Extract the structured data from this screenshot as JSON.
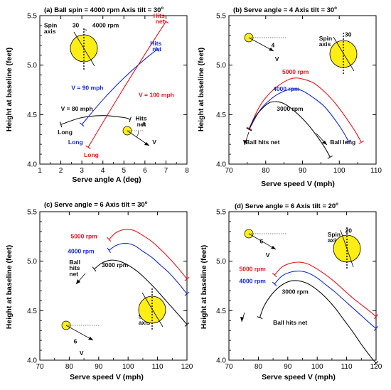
{
  "colors": {
    "red": "#e8141e",
    "blue": "#1428d2",
    "black": "#111111",
    "ball": "#ffee14"
  },
  "chart_data": [
    {
      "type": "line",
      "title": "(a) Ball spin = 4000 rpm   Axis tilt = 30",
      "title_deg": "o",
      "xlabel": "Serve angle A (deg)",
      "ylabel": "Height at baseline (feet)",
      "xlim": [
        1,
        8
      ],
      "ylim": [
        4.0,
        5.5
      ],
      "xticks": [
        "1",
        "2",
        "3",
        "4",
        "5",
        "6",
        "7",
        "8"
      ],
      "yticks": [
        "4.0",
        "4.5",
        "5.0",
        "5.5"
      ],
      "series": [
        {
          "name": "V = 80 mph",
          "color": "black",
          "x": [
            2.0,
            3.0,
            4.0,
            5.0,
            5.3
          ],
          "y": [
            4.4,
            4.47,
            4.49,
            4.47,
            4.45
          ]
        },
        {
          "name": "V = 90 mph",
          "color": "blue",
          "x": [
            3.0,
            4.0,
            5.0,
            6.0,
            6.6
          ],
          "y": [
            4.4,
            4.65,
            4.87,
            5.06,
            5.16
          ]
        },
        {
          "name": "V = 100 mph",
          "color": "red",
          "x": [
            3.3,
            4.0,
            5.0,
            6.0,
            7.0
          ],
          "y": [
            4.17,
            4.42,
            4.77,
            5.11,
            5.44
          ]
        }
      ],
      "annotations": [
        {
          "text": "V = 80 mph",
          "color": "black",
          "at": [
            2.0,
            4.54
          ]
        },
        {
          "text": "Long",
          "color": "black",
          "at": [
            1.85,
            4.3
          ]
        },
        {
          "text": "Hits",
          "color": "black",
          "at": [
            5.55,
            4.44
          ]
        },
        {
          "text": "net",
          "color": "black",
          "at": [
            5.62,
            4.38
          ]
        },
        {
          "text": "V = 90 mph",
          "color": "blue",
          "at": [
            2.5,
            4.75
          ]
        },
        {
          "text": "Long",
          "color": "blue",
          "at": [
            2.35,
            4.2
          ]
        },
        {
          "text": "Hits",
          "color": "blue",
          "at": [
            6.25,
            5.2
          ]
        },
        {
          "text": "net",
          "color": "blue",
          "at": [
            6.35,
            5.14
          ]
        },
        {
          "text": "V = 100 mph",
          "color": "red",
          "at": [
            5.7,
            4.68
          ]
        },
        {
          "text": "Long",
          "color": "red",
          "at": [
            3.1,
            4.07
          ]
        },
        {
          "text": "Hits",
          "color": "red",
          "at": [
            6.4,
            5.48
          ]
        },
        {
          "text": "net",
          "color": "red",
          "at": [
            6.5,
            5.42
          ]
        },
        {
          "text": "Spin",
          "color": "black",
          "at": [
            1.2,
            5.38
          ]
        },
        {
          "text": "axis",
          "color": "black",
          "at": [
            1.2,
            5.32
          ]
        },
        {
          "text": "30",
          "color": "black",
          "at": [
            2.55,
            5.38
          ]
        },
        {
          "text": "4000 rpm",
          "color": "black",
          "at": [
            3.5,
            5.38
          ]
        },
        {
          "text": "A",
          "color": "black",
          "at": [
            5.85,
            4.38
          ]
        },
        {
          "text": "V",
          "color": "black",
          "at": [
            6.35,
            4.2
          ]
        }
      ]
    },
    {
      "type": "line",
      "title": "(b)  Serve angle = 4   Axis tilt = 30",
      "title_deg": "o",
      "xlabel": "Serve speed V (mph)",
      "ylabel": "Height at baseline (feet)",
      "xlim": [
        70,
        110
      ],
      "ylim": [
        4.0,
        5.5
      ],
      "xticks": [
        "70",
        "80",
        "90",
        "100",
        "110"
      ],
      "yticks": [
        "4.0",
        "4.5",
        "5.0",
        "5.5"
      ],
      "series": [
        {
          "name": "5000 rpm",
          "color": "red",
          "x": [
            75.5,
            78,
            80,
            83,
            86,
            88,
            90,
            93,
            96,
            99,
            102,
            104.5,
            106
          ],
          "y": [
            4.36,
            4.56,
            4.67,
            4.78,
            4.85,
            4.87,
            4.86,
            4.82,
            4.73,
            4.61,
            4.46,
            4.32,
            4.22
          ]
        },
        {
          "name": "4000 rpm",
          "color": "blue",
          "x": [
            75.5,
            78,
            80,
            83,
            86,
            88,
            90,
            93,
            96,
            99,
            101,
            102.5
          ],
          "y": [
            4.35,
            4.52,
            4.61,
            4.7,
            4.75,
            4.76,
            4.74,
            4.67,
            4.58,
            4.44,
            4.33,
            4.23
          ]
        },
        {
          "name": "3000 rpm",
          "color": "black",
          "x": [
            75.5,
            77,
            79,
            81,
            83,
            85,
            87,
            90,
            93,
            96,
            97.5
          ],
          "y": [
            4.35,
            4.47,
            4.56,
            4.62,
            4.63,
            4.61,
            4.56,
            4.46,
            4.33,
            4.17,
            4.07
          ]
        }
      ],
      "annotations": [
        {
          "text": "5000 rpm",
          "color": "red",
          "at": [
            84.5,
            4.91
          ]
        },
        {
          "text": "4000 rpm",
          "color": "blue",
          "at": [
            82,
            4.74
          ]
        },
        {
          "text": "3000 rpm",
          "color": "black",
          "at": [
            83,
            4.54
          ]
        },
        {
          "text": "Ball hits net",
          "color": "black",
          "at": [
            74.5,
            4.2
          ]
        },
        {
          "text": "Ball long",
          "color": "black",
          "at": [
            97.5,
            4.2
          ]
        },
        {
          "text": "Spin",
          "color": "black",
          "at": [
            94.5,
            5.25
          ]
        },
        {
          "text": "axis",
          "color": "black",
          "at": [
            94.5,
            5.19
          ]
        },
        {
          "text": "30",
          "color": "black",
          "at": [
            101.5,
            5.29
          ]
        },
        {
          "text": "4",
          "color": "black",
          "at": [
            81.5,
            5.18
          ]
        },
        {
          "text": "V",
          "color": "black",
          "at": [
            82.5,
            5.04
          ]
        }
      ]
    },
    {
      "type": "line",
      "title": "(c)  Serve angle = 6   Axis tilt = 30",
      "title_deg": "o",
      "xlabel": "Serve speed V (mph)",
      "ylabel": "Height at baseline (feet)",
      "xlim": [
        70,
        120
      ],
      "ylim": [
        4.0,
        5.5
      ],
      "xticks": [
        "70",
        "80",
        "90",
        "100",
        "110",
        "120"
      ],
      "yticks": [
        "4.0",
        "4.5",
        "5.0",
        "5.5"
      ],
      "series": [
        {
          "name": "5000 rpm",
          "color": "red",
          "x": [
            93.5,
            96,
            99,
            102,
            105,
            108,
            111,
            114,
            117,
            120
          ],
          "y": [
            5.22,
            5.29,
            5.32,
            5.31,
            5.26,
            5.2,
            5.12,
            5.03,
            4.93,
            4.82
          ]
        },
        {
          "name": "4000 rpm",
          "color": "blue",
          "x": [
            93.5,
            96,
            99,
            102,
            105,
            108,
            111,
            114,
            117,
            120
          ],
          "y": [
            5.11,
            5.16,
            5.18,
            5.16,
            5.1,
            5.04,
            4.96,
            4.88,
            4.78,
            4.67
          ]
        },
        {
          "name": "3000 rpm",
          "color": "black",
          "x": [
            88.5,
            91,
            94,
            97,
            100,
            103,
            106,
            109,
            112,
            115,
            118,
            120
          ],
          "y": [
            4.92,
            4.98,
            5.01,
            5.0,
            4.96,
            4.9,
            4.82,
            4.73,
            4.63,
            4.53,
            4.43,
            4.36
          ]
        }
      ],
      "annotations": [
        {
          "text": "5000 rpm",
          "color": "red",
          "at": [
            80.5,
            5.23
          ]
        },
        {
          "text": "4000 rpm",
          "color": "blue",
          "at": [
            79.5,
            5.08
          ]
        },
        {
          "text": "3000 rpm",
          "color": "black",
          "at": [
            91,
            4.94
          ]
        },
        {
          "text": "Ball",
          "color": "black",
          "at": [
            80,
            4.97
          ]
        },
        {
          "text": "hits",
          "color": "black",
          "at": [
            80,
            4.91
          ]
        },
        {
          "text": "net",
          "color": "black",
          "at": [
            80,
            4.85
          ]
        },
        {
          "text": "Spin",
          "color": "black",
          "at": [
            103.5,
            4.42
          ]
        },
        {
          "text": "axis",
          "color": "black",
          "at": [
            103.5,
            4.36
          ]
        },
        {
          "text": "30",
          "color": "black",
          "at": [
            109.5,
            4.46
          ]
        },
        {
          "text": "6",
          "color": "black",
          "at": [
            81.5,
            4.17
          ]
        },
        {
          "text": "V",
          "color": "black",
          "at": [
            83.5,
            4.05
          ]
        }
      ]
    },
    {
      "type": "line",
      "title": "(d)  Serve angle = 6   Axis tilt = 20",
      "title_deg": "o",
      "xlabel": "Serve speed V (mph)",
      "ylabel": "Height at baseline (feet)",
      "xlim": [
        70,
        120
      ],
      "ylim": [
        4.0,
        5.5
      ],
      "xticks": [
        "70",
        "80",
        "90",
        "100",
        "110",
        "120"
      ],
      "yticks": [
        "4.0",
        "4.5",
        "5.0",
        "5.5"
      ],
      "series": [
        {
          "name": "5000 rpm",
          "color": "red",
          "x": [
            85.5,
            88,
            91,
            94,
            97,
            100,
            103,
            106,
            109,
            112,
            115,
            118,
            120
          ],
          "y": [
            4.86,
            4.94,
            4.98,
            4.99,
            4.97,
            4.92,
            4.86,
            4.79,
            4.71,
            4.63,
            4.56,
            4.49,
            4.44
          ]
        },
        {
          "name": "4000 rpm",
          "color": "blue",
          "x": [
            85.5,
            88,
            91,
            94,
            97,
            100,
            103,
            106,
            109,
            112,
            115,
            118,
            120
          ],
          "y": [
            4.77,
            4.85,
            4.89,
            4.9,
            4.88,
            4.83,
            4.76,
            4.69,
            4.61,
            4.53,
            4.45,
            4.37,
            4.32
          ]
        },
        {
          "name": "3000 rpm",
          "color": "black",
          "x": [
            80.5,
            82,
            85,
            88,
            91,
            94,
            97,
            100,
            103,
            106,
            109,
            112,
            115,
            118,
            120
          ],
          "y": [
            4.43,
            4.55,
            4.68,
            4.76,
            4.8,
            4.8,
            4.77,
            4.71,
            4.63,
            4.53,
            4.41,
            4.29,
            4.16,
            4.04,
            3.97
          ]
        }
      ],
      "annotations": [
        {
          "text": "5000 rpm",
          "color": "red",
          "at": [
            73.5,
            4.9
          ]
        },
        {
          "text": "4000 rpm",
          "color": "blue",
          "at": [
            73.5,
            4.78
          ]
        },
        {
          "text": "3000 rpm",
          "color": "black",
          "at": [
            88,
            4.67
          ]
        },
        {
          "text": "Ball hits net",
          "color": "black",
          "at": [
            85,
            4.36
          ]
        },
        {
          "text": "Spin",
          "color": "black",
          "at": [
            103.5,
            5.25
          ]
        },
        {
          "text": "axis",
          "color": "black",
          "at": [
            103.5,
            5.19
          ]
        },
        {
          "text": "20",
          "color": "black",
          "at": [
            109.5,
            5.29
          ]
        },
        {
          "text": "6",
          "color": "black",
          "at": [
            80.5,
            5.18
          ]
        },
        {
          "text": "V",
          "color": "black",
          "at": [
            82.5,
            5.04
          ]
        }
      ]
    }
  ]
}
